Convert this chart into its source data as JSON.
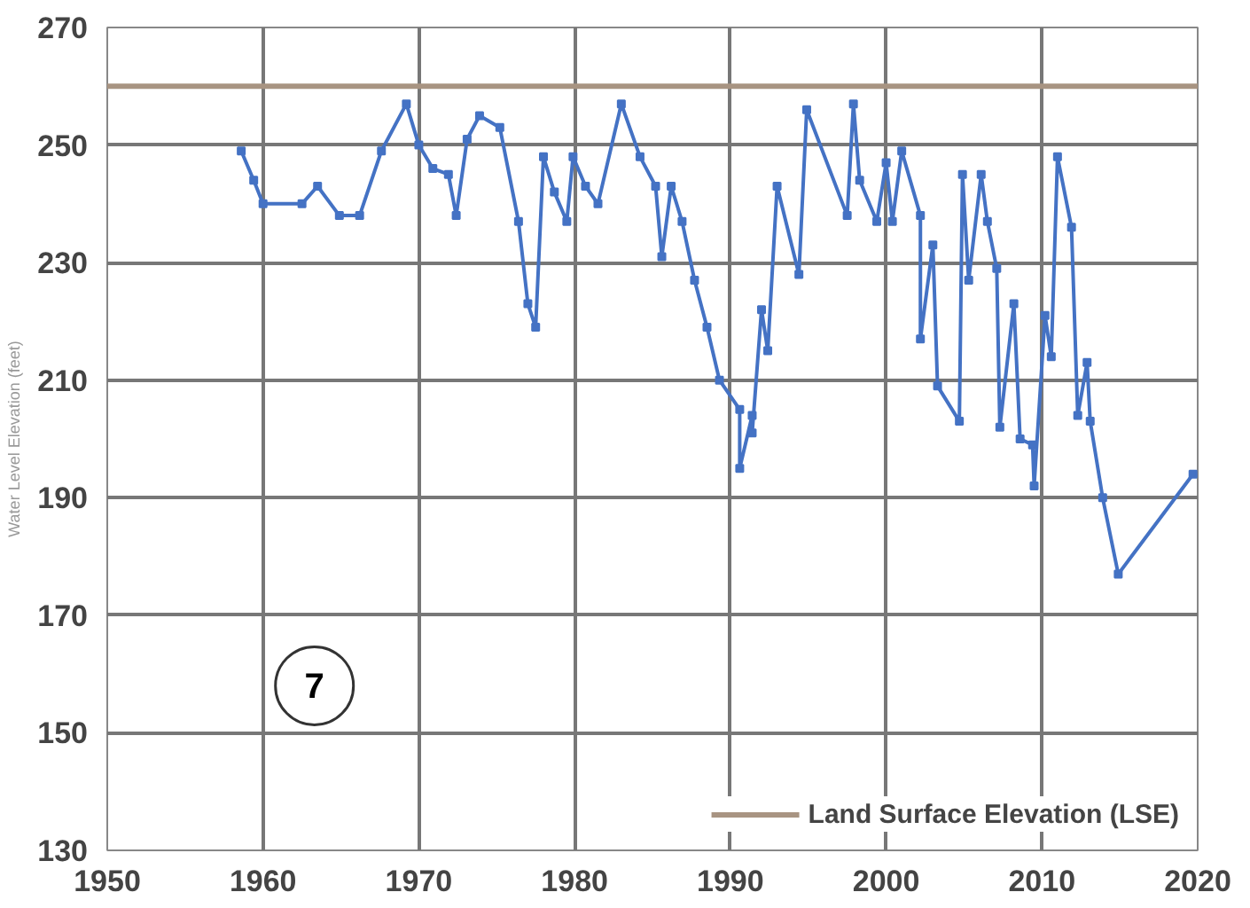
{
  "chart_data": {
    "type": "line",
    "ylabel": "Water Level Elevation (feet)",
    "x": [
      1958.6,
      1959.4,
      1960.0,
      1962.5,
      1963.5,
      1964.9,
      1966.2,
      1967.6,
      1969.2,
      1970.0,
      1970.9,
      1971.9,
      1972.4,
      1973.1,
      1973.9,
      1975.2,
      1976.4,
      1977.0,
      1977.5,
      1978.0,
      1978.7,
      1979.5,
      1979.9,
      1980.7,
      1981.5,
      1983.0,
      1984.2,
      1985.2,
      1985.6,
      1986.2,
      1986.9,
      1987.7,
      1988.5,
      1989.3,
      1990.6,
      1990.6,
      1991.4,
      1991.4,
      1992.0,
      1992.4,
      1993.0,
      1994.4,
      1994.9,
      1997.5,
      1997.9,
      1998.3,
      1999.4,
      2000.0,
      2000.4,
      2001.0,
      2002.2,
      2002.2,
      2003.0,
      2003.3,
      2004.7,
      2004.9,
      2005.3,
      2006.1,
      2006.5,
      2007.1,
      2007.3,
      2008.2,
      2008.6,
      2009.4,
      2009.5,
      2010.2,
      2010.6,
      2011.0,
      2011.9,
      2012.3,
      2012.9,
      2013.1,
      2013.9,
      2014.9,
      2019.7
    ],
    "series": [
      {
        "color": "#4472c4",
        "values": [
          249,
          244,
          240,
          240,
          243,
          238,
          238,
          249,
          257,
          250,
          246,
          245,
          238,
          251,
          255,
          253,
          237,
          223,
          219,
          248,
          242,
          237,
          248,
          243,
          240,
          257,
          248,
          243,
          231,
          243,
          237,
          227,
          219,
          210,
          205,
          195,
          204,
          201,
          222,
          215,
          243,
          228,
          256,
          238,
          257,
          244,
          237,
          247,
          237,
          249,
          238,
          217,
          233,
          209,
          203,
          245,
          227,
          245,
          237,
          229,
          202,
          223,
          200,
          199,
          192,
          221,
          214,
          248,
          236,
          204,
          213,
          203,
          190,
          177,
          194
        ]
      }
    ],
    "xlim": [
      1950,
      2020
    ],
    "xticks": [
      1950,
      1960,
      1970,
      1980,
      1990,
      2000,
      2010,
      2020
    ],
    "ylim": [
      130,
      270
    ],
    "yticks": [
      130,
      150,
      170,
      190,
      210,
      230,
      250,
      270
    ],
    "ref_lines": [
      {
        "axis": "y",
        "value": 260,
        "label": "Land Surface Elevation (LSE)",
        "color": "#a89482"
      }
    ],
    "annotations": [
      "7"
    ],
    "grid": true,
    "legend": "bottom right",
    "marker": "square",
    "line_style": "solid"
  }
}
